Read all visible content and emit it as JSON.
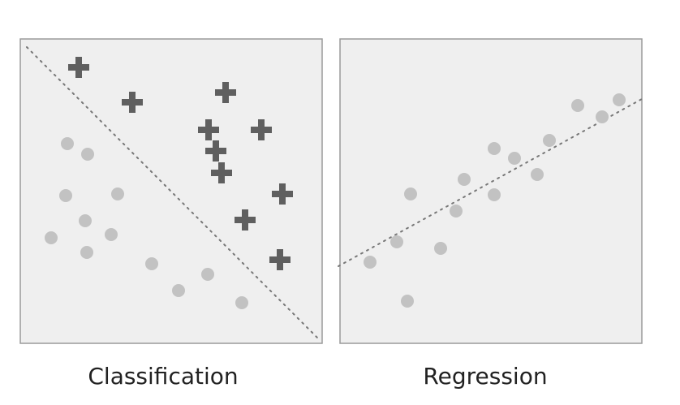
{
  "panels": [
    {
      "label": "Classification"
    },
    {
      "label": "Regression"
    }
  ]
}
